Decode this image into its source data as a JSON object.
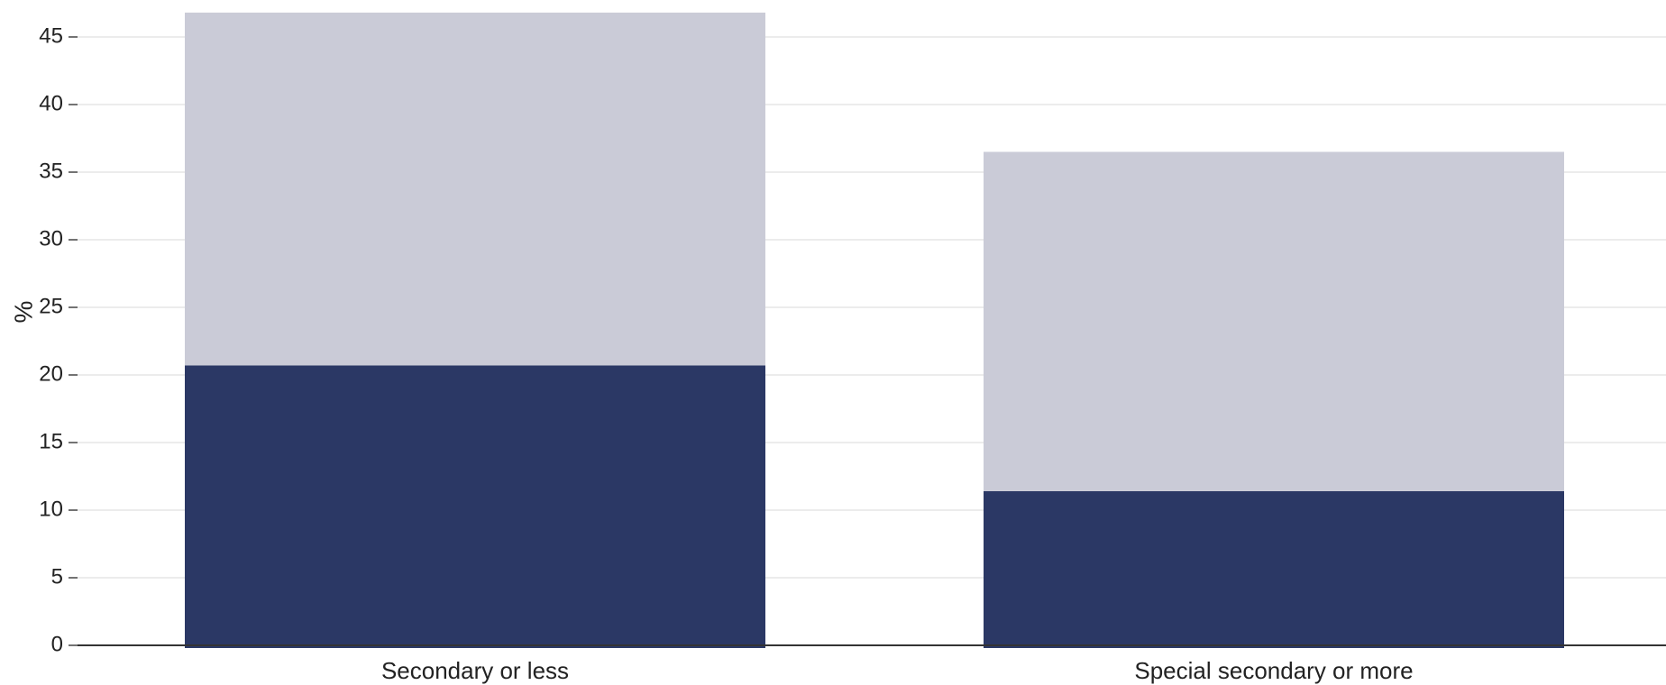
{
  "chart_data": {
    "type": "bar",
    "stacked": true,
    "categories": [
      "Secondary or less",
      "Special secondary or more"
    ],
    "series": [
      {
        "values": [
          20.7,
          11.4
        ],
        "color": "#2b3865"
      },
      {
        "values": [
          26.1,
          25.1
        ],
        "color": "#cacbd7"
      }
    ],
    "ylabel": "%",
    "xlabel": "",
    "ylim": [
      0,
      47
    ],
    "yticks": [
      0,
      5,
      10,
      15,
      20,
      25,
      30,
      35,
      40,
      45
    ],
    "grid": true,
    "legend": "none"
  }
}
